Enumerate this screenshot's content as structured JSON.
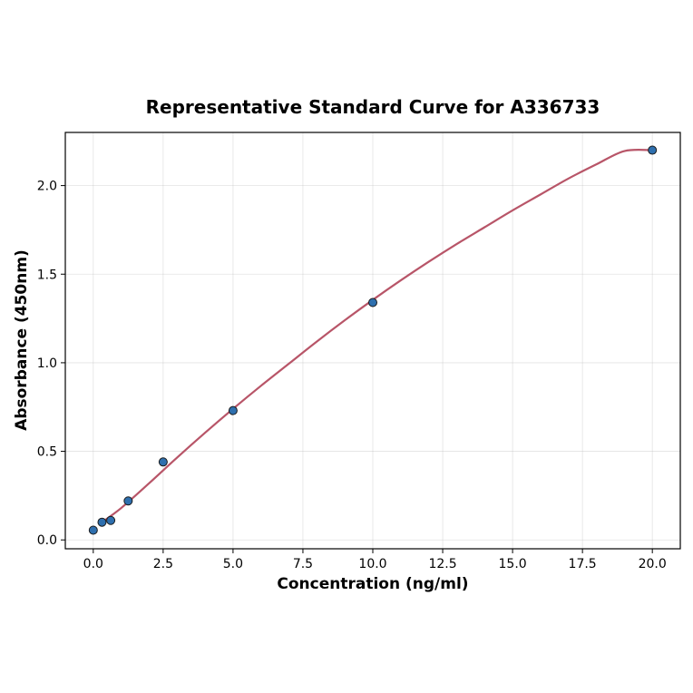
{
  "chart_data": {
    "type": "scatter",
    "title": "Representative Standard Curve for A336733",
    "xlabel": "Concentration (ng/ml)",
    "ylabel": "Absorbance (450nm)",
    "xlim": [
      -1.0,
      21.0
    ],
    "ylim": [
      -0.05,
      2.3
    ],
    "x_ticks": [
      0.0,
      2.5,
      5.0,
      7.5,
      10.0,
      12.5,
      15.0,
      17.5,
      20.0
    ],
    "x_tick_labels": [
      "0.0",
      "2.5",
      "5.0",
      "7.5",
      "10.0",
      "12.5",
      "15.0",
      "17.5",
      "20.0"
    ],
    "y_ticks": [
      0.0,
      0.5,
      1.0,
      1.5,
      2.0
    ],
    "y_tick_labels": [
      "0.0",
      "0.5",
      "1.0",
      "1.5",
      "2.0"
    ],
    "grid": true,
    "series": [
      {
        "type": "scatter",
        "x": [
          0,
          0.313,
          0.625,
          1.25,
          2.5,
          5,
          10,
          20
        ],
        "y": [
          0.055,
          0.1,
          0.11,
          0.22,
          0.44,
          0.73,
          1.34,
          2.2
        ],
        "color": "#2e6fae"
      },
      {
        "type": "line",
        "x": [
          0.313,
          1,
          2,
          3,
          4,
          5,
          6,
          7,
          8,
          9,
          10,
          11,
          12,
          13,
          14,
          15,
          16,
          17,
          18,
          19,
          20
        ],
        "y": [
          0.1,
          0.18,
          0.32,
          0.465,
          0.605,
          0.74,
          0.87,
          0.995,
          1.12,
          1.24,
          1.355,
          1.465,
          1.57,
          1.67,
          1.765,
          1.86,
          1.95,
          2.04,
          2.12,
          2.195,
          2.2
        ],
        "color": "#b85568"
      }
    ]
  }
}
